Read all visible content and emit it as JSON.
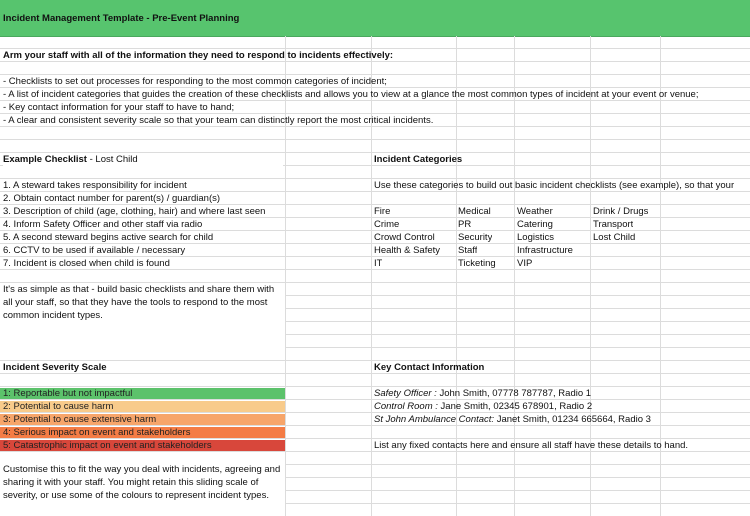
{
  "header": {
    "title": "Incident Management Template - Pre-Event Planning"
  },
  "intro": {
    "heading": "Arm your staff with all of the information they need to respond to incidents effectively:",
    "bullets": [
      "- Checklists to set out processes for responding to the most common categories of incident;",
      "- A list of incident categories that guides the creation of these checklists and allows you to view at a glance the most common types of incident at your event or venue;",
      "- Key contact information for your staff to have to hand;",
      "- A clear and consistent severity scale so that your team can distinctly report the most critical incidents."
    ]
  },
  "example_checklist": {
    "heading": "Example Checklist",
    "subheading": "- Lost Child",
    "steps": [
      "1. A steward takes responsibility for incident",
      "2. Obtain contact number for parent(s) / guardian(s)",
      "3. Description of child (age, clothing, hair) and where last seen",
      "4. Inform Safety Officer and other staff via radio",
      "5. A second steward begins active search for child",
      "6. CCTV to be used if available / necessary",
      "7. Incident is closed when child is found"
    ],
    "note": "It's as simple as that - build basic checklists and share them with all your staff, so that they have the tools to respond to the most common incident types."
  },
  "incident_categories": {
    "heading": "Incident Categories",
    "description": "Use these categories to build out basic incident checklists (see example), so that your",
    "rows": [
      [
        "Fire",
        "Medical",
        "Weather",
        "Drink / Drugs"
      ],
      [
        "Crime",
        "PR",
        "Catering",
        "Transport"
      ],
      [
        "Crowd Control",
        "Security",
        "Logistics",
        "Lost Child"
      ],
      [
        "Health & Safety",
        "Staff",
        "Infrastructure"
      ],
      [
        "IT",
        "Ticketing",
        "VIP"
      ]
    ]
  },
  "severity_scale": {
    "heading": "Incident Severity Scale",
    "levels": [
      {
        "label": "1: Reportable but not impactful",
        "color": "#5cc26b"
      },
      {
        "label": "2: Potential to cause harm",
        "color": "#f8cb8b"
      },
      {
        "label": "3: Potential to cause extensive harm",
        "color": "#f7a56a"
      },
      {
        "label": "4: Serious impact on event and stakeholders",
        "color": "#f47c45"
      },
      {
        "label": "5: Catastrophic impact on event and stakeholders",
        "color": "#d8473b"
      }
    ],
    "note": "Customise this to fit the way you deal with incidents, agreeing and sharing it with your staff. You might retain this sliding scale of severity, or use some of the colours to represent incident types."
  },
  "key_contacts": {
    "heading": "Key Contact Information",
    "contacts": [
      {
        "role": "Safety Officer :",
        "details": "John Smith, 07778 787787, Radio 1"
      },
      {
        "role": "Control Room :",
        "details": "Jane Smith, 02345 678901, Radio 2"
      },
      {
        "role": "St John Ambulance Contact:",
        "details": "Janet Smith, 01234 665664, Radio 3"
      }
    ],
    "note": "List any fixed contacts here and ensure all staff have these details to hand."
  }
}
